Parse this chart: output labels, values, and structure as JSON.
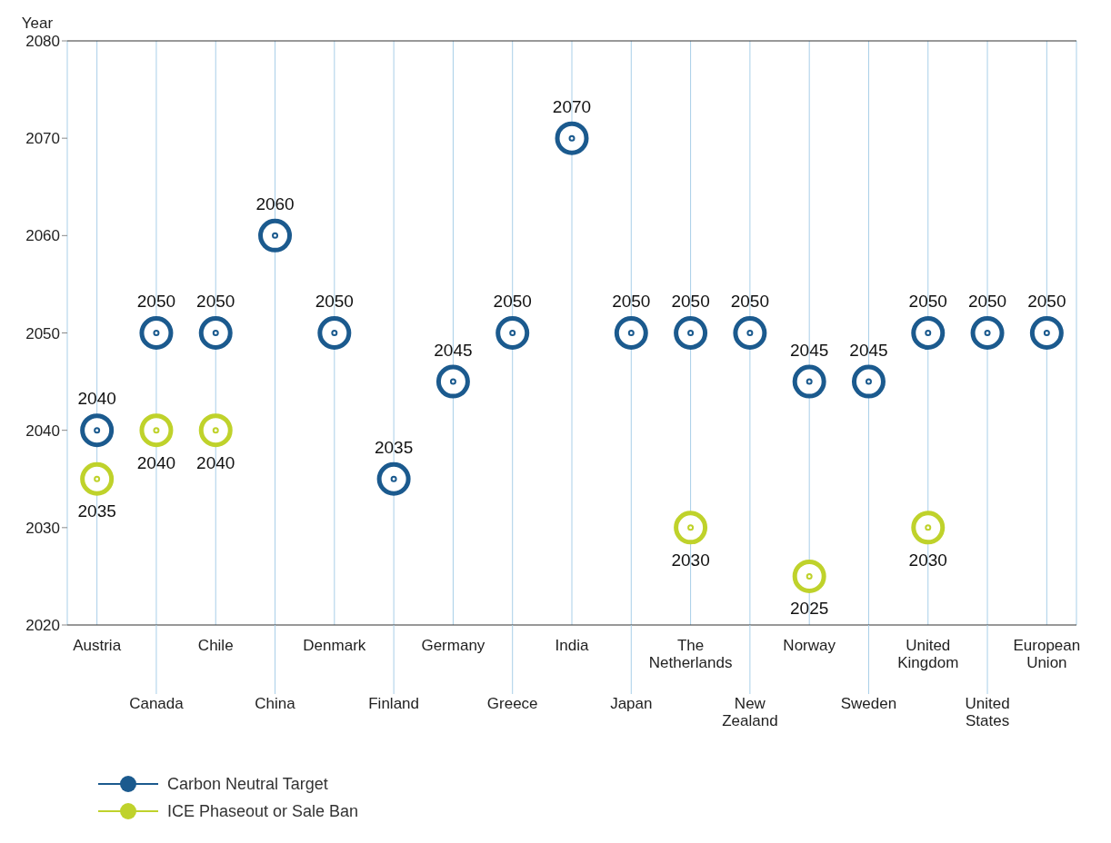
{
  "chart_data": {
    "type": "scatter",
    "ylabel": "Year",
    "categories": [
      "Austria",
      "Canada",
      "Chile",
      "China",
      "Denmark",
      "Finland",
      "Germany",
      "Greece",
      "India",
      "Japan",
      "The Netherlands",
      "New Zealand",
      "Norway",
      "Sweden",
      "United Kingdom",
      "United States",
      "European Union"
    ],
    "series": [
      {
        "name": "Carbon Neutral Target",
        "color": "#1b5a8e",
        "values": [
          2040,
          2050,
          2050,
          2060,
          2050,
          2035,
          2045,
          2050,
          2070,
          2050,
          2050,
          2050,
          2045,
          2045,
          2050,
          2050,
          2050
        ]
      },
      {
        "name": "ICE Phaseout or Sale Ban",
        "color": "#bfd22b",
        "values": [
          2035,
          2040,
          2040,
          null,
          null,
          null,
          null,
          null,
          null,
          null,
          2030,
          null,
          2025,
          null,
          2030,
          null,
          null
        ]
      }
    ],
    "ylim": [
      2020,
      2080
    ],
    "yticks": [
      2020,
      2030,
      2040,
      2050,
      2060,
      2070,
      2080
    ],
    "grid": "x",
    "legend": "bottom left",
    "marker": "circle",
    "data_labels": true
  }
}
